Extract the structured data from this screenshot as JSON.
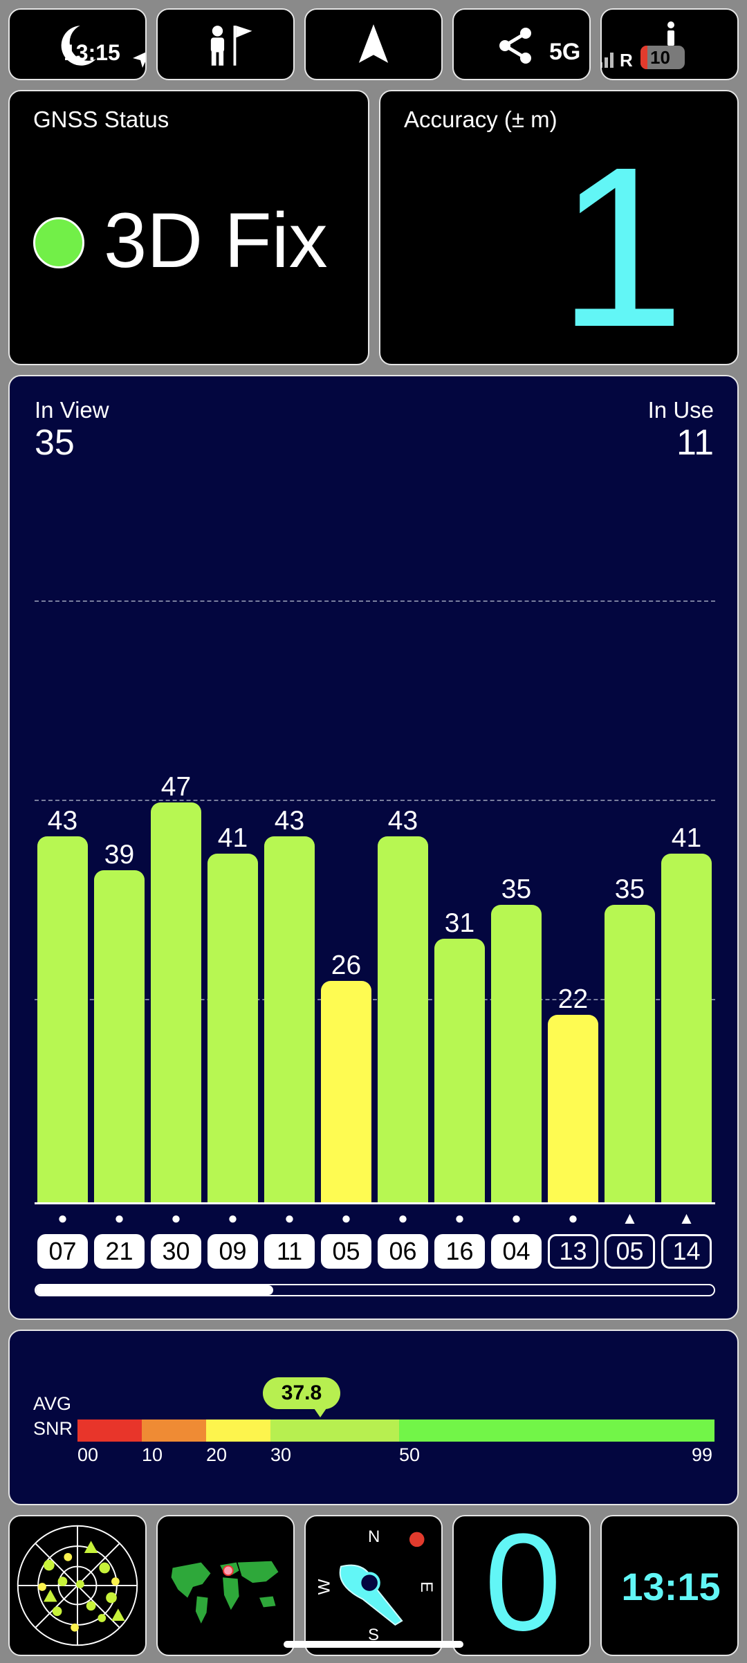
{
  "status_bar": {
    "time": "13:15",
    "network": "5G",
    "battery": "10",
    "roaming": "R"
  },
  "gnss": {
    "title": "GNSS Status",
    "fix": "3D Fix",
    "fix_color": "#72ef48"
  },
  "accuracy": {
    "title": "Accuracy (± m)",
    "value": "1",
    "color": "#62f6f6"
  },
  "satellites": {
    "in_view_label": "In View",
    "in_view": "35",
    "in_use_label": "In Use",
    "in_use": "11",
    "scroll_fraction": 0.35
  },
  "chart_data": {
    "type": "bar",
    "categories": [
      "07",
      "21",
      "30",
      "09",
      "11",
      "05",
      "06",
      "16",
      "04",
      "13",
      "05",
      "14"
    ],
    "values": [
      43,
      39,
      47,
      41,
      43,
      26,
      43,
      31,
      35,
      22,
      35,
      41
    ],
    "markers": [
      "dot",
      "dot",
      "dot",
      "dot",
      "dot",
      "dot",
      "dot",
      "dot",
      "dot",
      "dot",
      "triangle",
      "triangle"
    ],
    "used": [
      true,
      true,
      true,
      true,
      true,
      true,
      true,
      true,
      true,
      false,
      false,
      false
    ],
    "bar_colors": [
      "#b7f752",
      "#b7f752",
      "#b7f752",
      "#b7f752",
      "#b7f752",
      "#fefb52",
      "#b7f752",
      "#b7f752",
      "#b7f752",
      "#fefb52",
      "#b7f752",
      "#b7f752"
    ],
    "ylim": [
      0,
      60
    ],
    "grid": "dashed",
    "xlabel": "",
    "ylabel": ""
  },
  "snr": {
    "label_1": "AVG",
    "label_2": "SNR",
    "avg": "37.8",
    "avg_value": 37.8,
    "segments": [
      {
        "from": 0,
        "to": 10,
        "color": "#e8352a"
      },
      {
        "from": 10,
        "to": 20,
        "color": "#ef8b34"
      },
      {
        "from": 20,
        "to": 30,
        "color": "#fdf44d"
      },
      {
        "from": 30,
        "to": 50,
        "color": "#b7ef50"
      },
      {
        "from": 50,
        "to": 99,
        "color": "#72f548"
      }
    ],
    "ticks": [
      "00",
      "10",
      "20",
      "30",
      "50",
      "99"
    ]
  },
  "compass": {
    "n": "N",
    "e": "E",
    "s": "S",
    "w": "W"
  },
  "bottom": {
    "sats_counter": "0",
    "clock": "13:15",
    "accent": "#62f6f6"
  },
  "icons": [
    "night-mode-icon",
    "location-arrow-icon",
    "flag-person-icon",
    "navigation-icon",
    "share-icon",
    "signal-icon",
    "battery-icon",
    "info-icon",
    "sky-radar-icon",
    "world-map-icon",
    "compass-icon"
  ]
}
